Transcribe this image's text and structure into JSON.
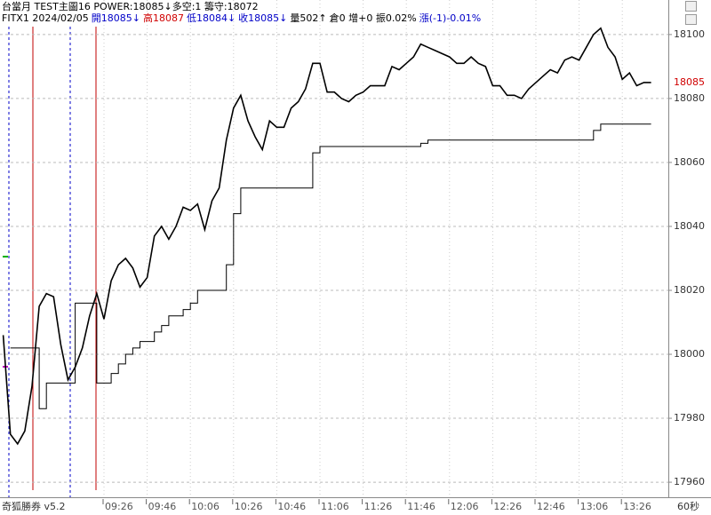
{
  "header": {
    "line1": "台當月 TEST主圖16 POWER:18085↓多空:1 籌守:18072",
    "line2": [
      "FITX1 2024/02/05",
      "開18085↓",
      "高18087",
      "低18084↓",
      "收18085↓",
      "量502↑",
      "倉0 增+0 振0.02%",
      "漲(-1)-0.01%"
    ]
  },
  "footer": {
    "brand": "奇狐勝券 v5.2"
  },
  "chart_data": {
    "type": "line",
    "x_label": "60秒",
    "categories": [
      null,
      null,
      null,
      null,
      null,
      null,
      null,
      null,
      null,
      null,
      null,
      null,
      null,
      null,
      "09:26",
      null,
      null,
      null,
      null,
      null,
      "09:46",
      null,
      null,
      null,
      null,
      null,
      "10:06",
      null,
      null,
      null,
      null,
      null,
      "10:26",
      null,
      null,
      null,
      null,
      null,
      "10:46",
      null,
      null,
      null,
      null,
      null,
      "11:06",
      null,
      null,
      null,
      null,
      null,
      "11:26",
      null,
      null,
      null,
      null,
      null,
      "11:46",
      null,
      null,
      null,
      null,
      null,
      "12:06",
      null,
      null,
      null,
      null,
      null,
      "12:26",
      null,
      null,
      null,
      null,
      null,
      "12:46",
      null,
      null,
      null,
      null,
      null,
      "13:06",
      null,
      null,
      null,
      null,
      null,
      "13:26",
      null,
      null,
      null,
      null
    ],
    "series": [
      {
        "color": "#000000",
        "style": "line",
        "values": [
          18006,
          17975,
          17972,
          17976,
          17990,
          18015,
          18019,
          18018,
          18003,
          17992,
          17996,
          18002,
          18012,
          18019,
          18011,
          18023,
          18028,
          18030,
          18027,
          18021,
          18024,
          18037,
          18040,
          18036,
          18040,
          18046,
          18045,
          18047,
          18039,
          18048,
          18052,
          18067,
          18077,
          18081,
          18073,
          18068,
          18064,
          18073,
          18071,
          18071,
          18077,
          18079,
          18083,
          18091,
          18091,
          18082,
          18082,
          18080,
          18079,
          18081,
          18082,
          18084,
          18084,
          18084,
          18090,
          18089,
          18091,
          18093,
          18097,
          18096,
          18095,
          18094,
          18093,
          18091,
          18091,
          18093,
          18091,
          18090,
          18084,
          18084,
          18081,
          18081,
          18080,
          18083,
          18085,
          18087,
          18089,
          18088,
          18092,
          18093,
          18092,
          18096,
          18100,
          18102,
          18096,
          18093,
          18086,
          18088,
          18084,
          18085,
          18085
        ]
      },
      {
        "color": "#000000",
        "style": "step",
        "values": [
          null,
          18002,
          18002,
          18002,
          18002,
          17983,
          17991,
          17991,
          17991,
          17991,
          18016,
          18016,
          18016,
          17991,
          17991,
          17994,
          17997,
          18000,
          18002,
          18004,
          18004,
          18007,
          18009,
          18012,
          18012,
          18014,
          18016,
          18020,
          18020,
          18020,
          18020,
          18028,
          18044,
          18052,
          18052,
          18052,
          18052,
          18052,
          18052,
          18052,
          18052,
          18052,
          18052,
          18063,
          18065,
          18065,
          18065,
          18065,
          18065,
          18065,
          18065,
          18065,
          18065,
          18065,
          18065,
          18065,
          18065,
          18065,
          18066,
          18067,
          18067,
          18067,
          18067,
          18067,
          18067,
          18067,
          18067,
          18067,
          18067,
          18067,
          18067,
          18067,
          18067,
          18067,
          18067,
          18067,
          18067,
          18067,
          18067,
          18067,
          18067,
          18067,
          18070,
          18072,
          18072,
          18072,
          18072,
          18072,
          18072,
          18072,
          18072
        ]
      }
    ],
    "last_price": 18085,
    "last_price_color": "#d00000",
    "ylim": [
      17955.3,
      18110.8
    ],
    "yticks": [
      17960,
      17980,
      18000,
      18020,
      18040,
      18060,
      18080,
      18100
    ],
    "grid": true
  }
}
